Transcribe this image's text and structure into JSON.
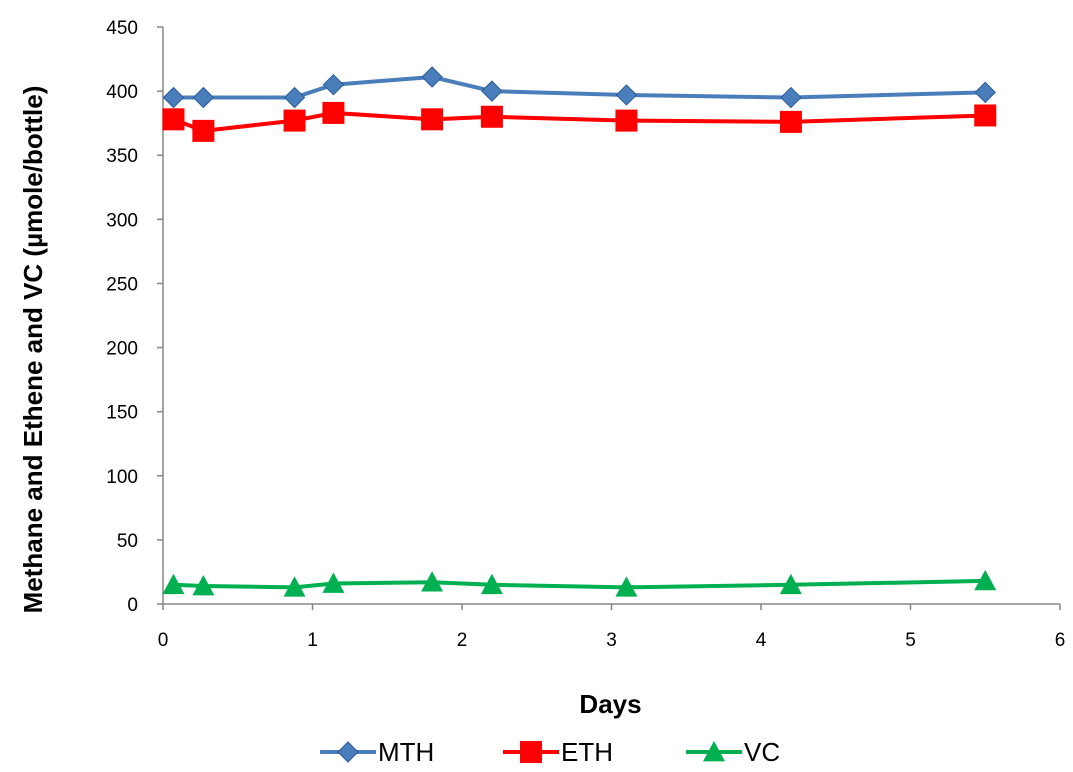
{
  "chart_data": {
    "type": "line",
    "title": "",
    "xlabel": "Days",
    "ylabel": "Methane and Ethene and VC (µmole/bottle)",
    "xlim": [
      0,
      6
    ],
    "ylim": [
      0,
      450
    ],
    "xticks": [
      0,
      1,
      2,
      3,
      4,
      5,
      6
    ],
    "yticks": [
      0,
      50,
      100,
      150,
      200,
      250,
      300,
      350,
      400,
      450
    ],
    "grid": false,
    "legend_position": "bottom",
    "series": [
      {
        "name": "MTH",
        "color": "#4a7ebb",
        "marker": "diamond",
        "x": [
          0.07,
          0.27,
          0.88,
          1.14,
          1.8,
          2.2,
          3.1,
          4.2,
          5.5
        ],
        "y": [
          395,
          395,
          395,
          405,
          411,
          400,
          397,
          395,
          399
        ]
      },
      {
        "name": "ETH",
        "color": "#ff0000",
        "marker": "square",
        "x": [
          0.07,
          0.27,
          0.88,
          1.14,
          1.8,
          2.2,
          3.1,
          4.2,
          5.5
        ],
        "y": [
          378,
          369,
          377,
          383,
          378,
          380,
          377,
          376,
          381
        ]
      },
      {
        "name": "VC",
        "color": "#00b050",
        "marker": "triangle",
        "x": [
          0.07,
          0.27,
          0.88,
          1.14,
          1.8,
          2.2,
          3.1,
          4.2,
          5.5
        ],
        "y": [
          15,
          14,
          13,
          16,
          17,
          15,
          13,
          15,
          18
        ]
      }
    ]
  }
}
